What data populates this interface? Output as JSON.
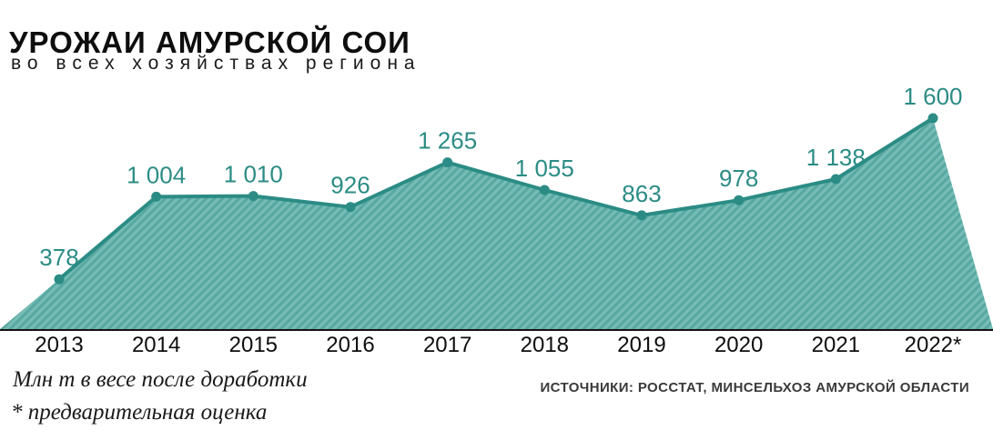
{
  "header": {
    "title": "УРОЖАИ АМУРСКОЙ СОИ",
    "subtitle": "во всех хозяйствах региона"
  },
  "footer": {
    "unit_note": "Млн т в весе после доработки",
    "footnote": "* предварительная оценка",
    "sources": "ИСТОЧНИКИ: РОССТАТ, МИНСЕЛЬХОЗ АМУРСКОЙ ОБЛАСТИ"
  },
  "colors": {
    "line": "#2b8c85",
    "fill": "#76bcb6",
    "hatch": "#58a8a1",
    "value_label": "#2b8c85",
    "axis": "#121212"
  },
  "chart_data": {
    "type": "area",
    "title": "УРОЖАИ АМУРСКОЙ СОИ",
    "subtitle": "во всех хозяйствах региона",
    "categories": [
      "2013",
      "2014",
      "2015",
      "2016",
      "2017",
      "2018",
      "2019",
      "2020",
      "2021",
      "2022*"
    ],
    "values": [
      378,
      1004,
      1010,
      926,
      1265,
      1055,
      863,
      978,
      1138,
      1600
    ],
    "value_labels": [
      "378",
      "1 004",
      "1 010",
      "926",
      "1 265",
      "1 055",
      "863",
      "978",
      "1 138",
      "1 600"
    ],
    "ylim": [
      0,
      1700
    ],
    "grid": false,
    "legend": false
  }
}
